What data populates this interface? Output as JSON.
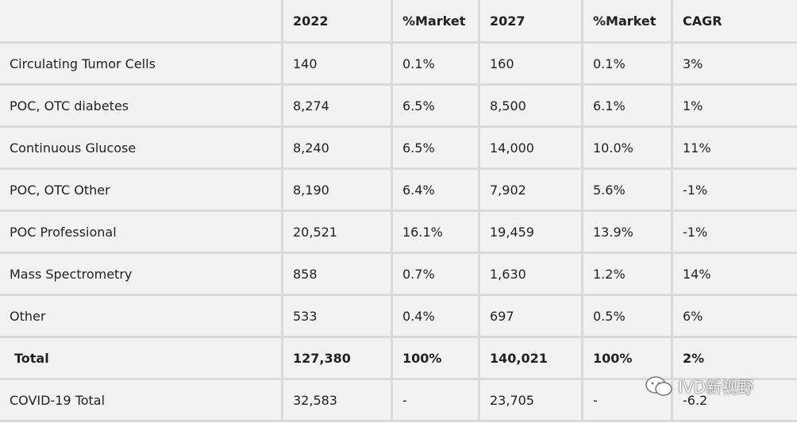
{
  "table": {
    "header": [
      "",
      "2022",
      "%Market",
      "2027",
      "%Market",
      "CAGR"
    ],
    "rows": [
      [
        "Circulating Tumor Cells",
        "140",
        "0.1%",
        "160",
        "0.1%",
        "3%"
      ],
      [
        "POC, OTC diabetes",
        "8,274",
        "6.5%",
        "8,500",
        "6.1%",
        "1%"
      ],
      [
        "Continuous Glucose",
        "8,240",
        "6.5%",
        "14,000",
        "10.0%",
        "11%"
      ],
      [
        "POC, OTC Other",
        "8,190",
        "6.4%",
        "7,902",
        "5.6%",
        "-1%"
      ],
      [
        "POC Professional",
        "20,521",
        "16.1%",
        "19,459",
        "13.9%",
        "-1%"
      ],
      [
        "Mass Spectrometry",
        "858",
        "0.7%",
        "1,630",
        "1.2%",
        "14%"
      ],
      [
        "Other",
        "533",
        "0.4%",
        "697",
        "0.5%",
        "6%"
      ],
      [
        "Total",
        "127,380",
        "100%",
        "140,021",
        "100%",
        "2%"
      ],
      [
        "COVID-19 Total",
        "32,583",
        "-",
        "23,705",
        "-",
        "-6.2"
      ]
    ],
    "bold_rows": [
      7
    ]
  },
  "watermark": "IVD新视野"
}
